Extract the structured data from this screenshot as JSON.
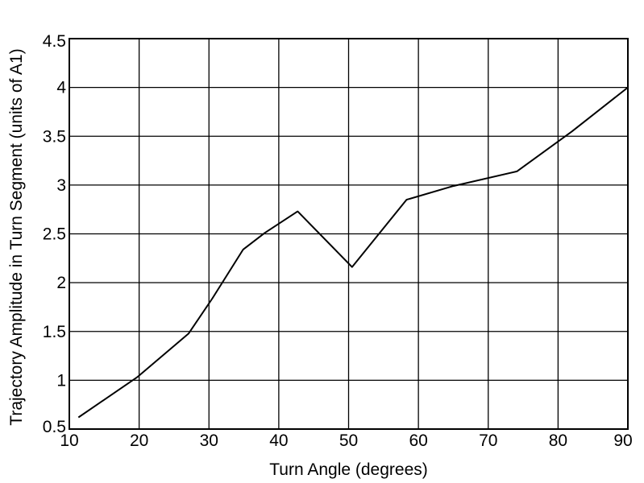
{
  "chart_data": {
    "type": "line",
    "xlabel": "Turn Angle (degrees)",
    "ylabel": "Trajectory Amplitude in Turn Segment (units of A1)",
    "xlim": [
      10,
      90
    ],
    "ylim": [
      0.5,
      4.5
    ],
    "xticks": [
      10,
      20,
      30,
      40,
      50,
      60,
      70,
      80,
      90
    ],
    "yticks": [
      0.5,
      1,
      1.5,
      2,
      2.5,
      3,
      3.5,
      4,
      4.5
    ],
    "xtick_labels": [
      "10",
      "20",
      "30",
      "40",
      "50",
      "60",
      "70",
      "80",
      "90"
    ],
    "ytick_labels": [
      "0.5",
      "1",
      "1.5",
      "2",
      "2.5",
      "3",
      "3.5",
      "4",
      "4.5"
    ],
    "grid": true,
    "series": [
      {
        "x": [
          11.3,
          19.7,
          27.1,
          30.5,
          34.9,
          38.0,
          42.7,
          50.5,
          58.3,
          65.0,
          74.1,
          82.0,
          90.0
        ],
        "y": [
          0.62,
          1.03,
          1.48,
          1.84,
          2.34,
          2.51,
          2.73,
          2.16,
          2.85,
          2.99,
          3.14,
          3.55,
          4.0
        ]
      }
    ]
  }
}
